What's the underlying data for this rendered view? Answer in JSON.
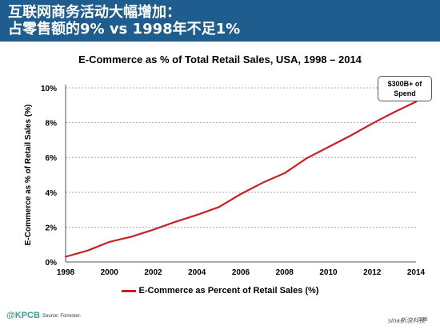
{
  "header": {
    "line1": "互联网商务活动大幅增加：",
    "line2": "占零售额的9% vs 1998年不足1%"
  },
  "callout": {
    "line1": "$300B+ of",
    "line2": "Spend"
  },
  "footer": {
    "logo": "@KPCB",
    "source": "Source: Forrester.",
    "watermark": "sina新浪科技",
    "page": "126"
  },
  "colors": {
    "header_bg": "#1f5d8f",
    "series": "#cc1f24",
    "logo": "#3a9f93"
  },
  "chart_data": {
    "type": "line",
    "title": "E-Commerce as % of Total Retail Sales, USA, 1998 – 2014",
    "xlabel": "",
    "ylabel": "E-Commerce as % of Retail Sales (%)",
    "xlim": [
      1998,
      2014
    ],
    "ylim": [
      0,
      10
    ],
    "x_ticks": [
      1998,
      2000,
      2002,
      2004,
      2006,
      2008,
      2010,
      2012,
      2014
    ],
    "x_tick_labels": [
      "1998",
      "2000",
      "2002",
      "2004",
      "2006",
      "2008",
      "2010",
      "2012",
      "2014"
    ],
    "y_ticks": [
      0,
      2,
      4,
      6,
      8,
      10
    ],
    "y_tick_labels": [
      "0%",
      "2%",
      "4%",
      "6%",
      "8%",
      "10%"
    ],
    "grid": "horizontal dashed",
    "legend_position": "bottom-center",
    "series": [
      {
        "name": "E-Commerce as Percent of Retail Sales (%)",
        "x": [
          1998,
          1999,
          2000,
          2001,
          2002,
          2003,
          2004,
          2005,
          2006,
          2007,
          2008,
          2009,
          2010,
          2011,
          2012,
          2013,
          2014
        ],
        "values": [
          0.3,
          0.65,
          1.15,
          1.45,
          1.85,
          2.3,
          2.7,
          3.15,
          3.9,
          4.55,
          5.1,
          5.95,
          6.6,
          7.25,
          7.95,
          8.6,
          9.2
        ]
      }
    ]
  }
}
